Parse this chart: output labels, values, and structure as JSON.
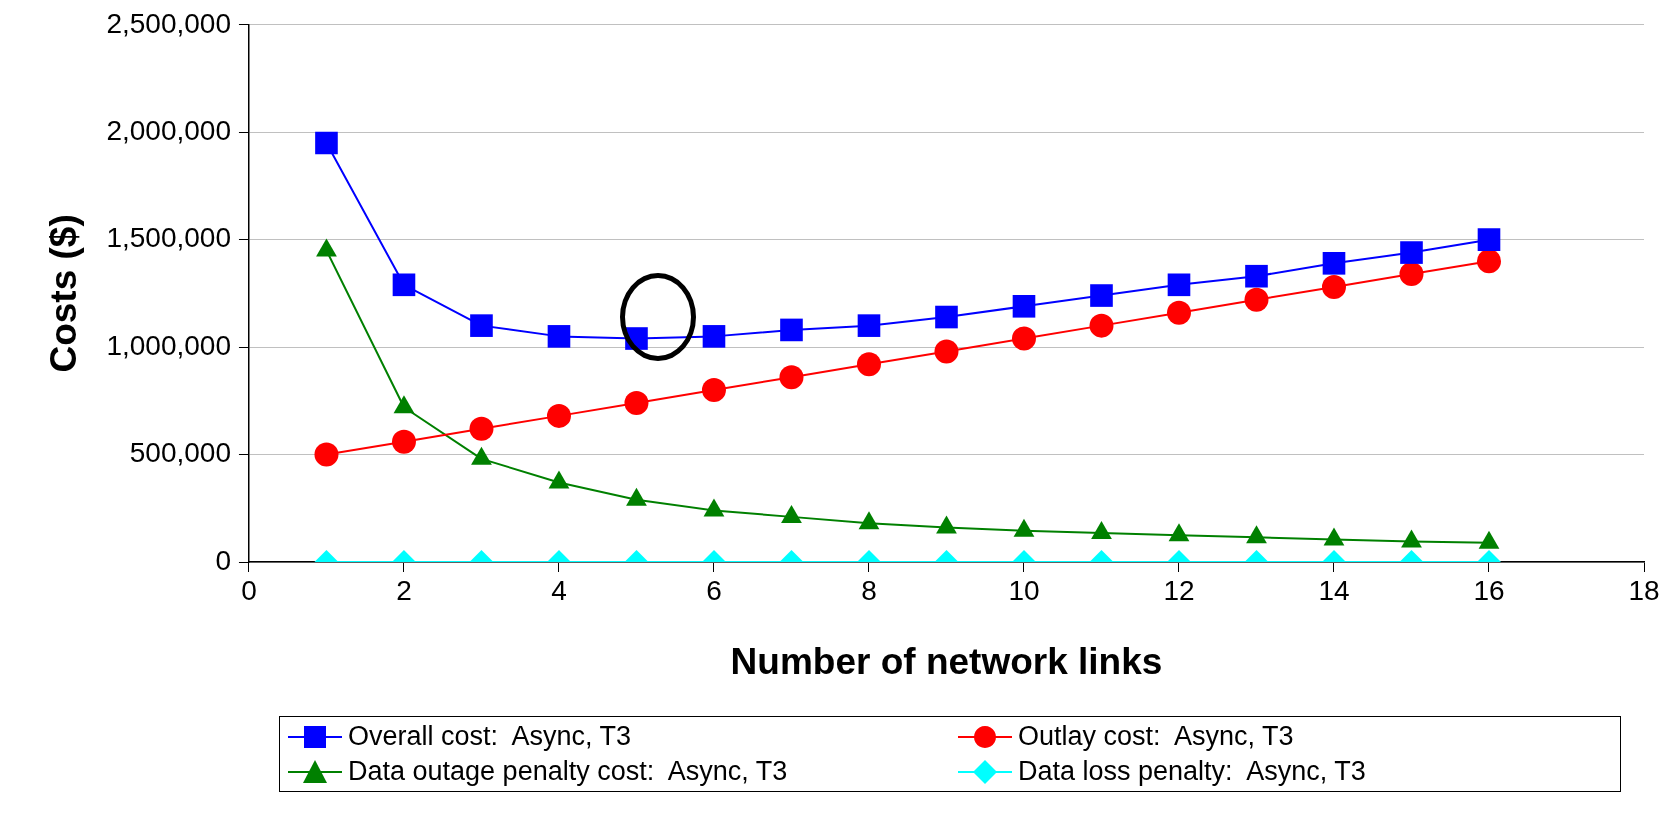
{
  "chart_data": {
    "type": "line",
    "xlabel": "Number of network links",
    "ylabel": "Costs ($)",
    "x": [
      1,
      2,
      3,
      4,
      5,
      6,
      7,
      8,
      9,
      10,
      11,
      12,
      13,
      14,
      15,
      16
    ],
    "series": [
      {
        "name": "Overall cost:  Async, T3",
        "color": "#0000ff",
        "marker": "square",
        "values": [
          1950000,
          1290000,
          1100000,
          1050000,
          1040000,
          1050000,
          1080000,
          1100000,
          1140000,
          1190000,
          1240000,
          1290000,
          1330000,
          1390000,
          1440000,
          1500000
        ]
      },
      {
        "name": "Outlay cost:  Async, T3",
        "color": "#ff0000",
        "marker": "circle",
        "values": [
          500000,
          560000,
          620000,
          680000,
          740000,
          800000,
          860000,
          920000,
          980000,
          1040000,
          1100000,
          1160000,
          1220000,
          1280000,
          1340000,
          1400000
        ]
      },
      {
        "name": "Data outage penalty cost:  Async, T3",
        "color": "#008000",
        "marker": "triangle",
        "values": [
          1450000,
          720000,
          480000,
          370000,
          290000,
          240000,
          210000,
          180000,
          160000,
          145000,
          135000,
          125000,
          115000,
          105000,
          95000,
          90000
        ]
      },
      {
        "name": "Data loss penalty:  Async, T3",
        "color": "#00ffff",
        "marker": "diamond",
        "values": [
          0,
          0,
          0,
          0,
          0,
          0,
          0,
          0,
          0,
          0,
          0,
          0,
          0,
          0,
          0,
          0
        ]
      }
    ],
    "xlim": [
      0,
      18
    ],
    "xticks": [
      0,
      2,
      4,
      6,
      8,
      10,
      12,
      14,
      16,
      18
    ],
    "ylim": [
      0,
      2500000
    ],
    "yticks": [
      0,
      {
        "value": 500000,
        "label": "500,000"
      },
      {
        "value": 1000000,
        "label": "1,000,000"
      },
      {
        "value": 1500000,
        "label": "1,500,000"
      },
      {
        "value": 2000000,
        "label": "2,000,000"
      },
      {
        "value": 2500000,
        "label": "2,500,000"
      }
    ],
    "grid": "y",
    "legend": "bottom",
    "line_style": "solid"
  }
}
